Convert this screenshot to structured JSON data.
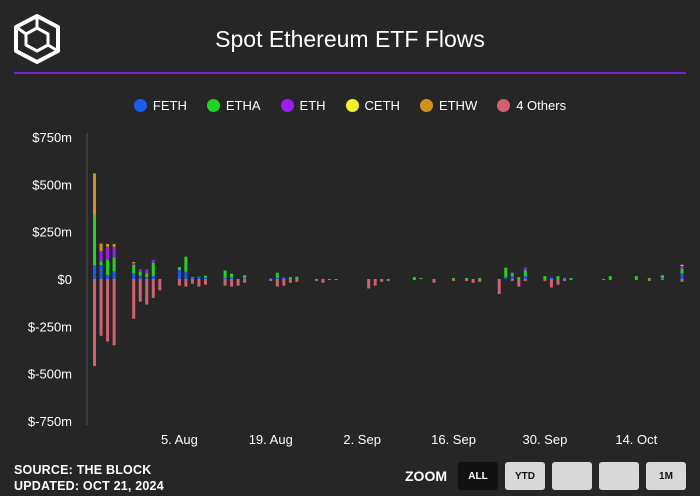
{
  "title": "Spot Ethereum ETF Flows",
  "footer": {
    "source": "SOURCE: THE BLOCK",
    "updated": "UPDATED: OCT 21, 2024"
  },
  "zoom": {
    "label": "ZOOM",
    "buttons": [
      "ALL",
      "YTD",
      "",
      "",
      "1M"
    ],
    "active": "ALL"
  },
  "colors": {
    "background": "#262626",
    "accent": "#7b1fd6"
  },
  "chart_data": {
    "type": "bar",
    "stacked": true,
    "title": "Spot Ethereum ETF Flows",
    "ylim": [
      -750,
      750
    ],
    "yticks": [
      -750,
      -500,
      -250,
      0,
      250,
      500,
      750
    ],
    "ytick_labels": [
      "$-750m",
      "$-500m",
      "$-250m",
      "$0",
      "$250m",
      "$500m",
      "$750m"
    ],
    "xlim": [
      "2024-07-22",
      "2024-10-21"
    ],
    "xtick_labels": [
      {
        "date": "2024-08-05",
        "label": "5. Aug"
      },
      {
        "date": "2024-08-19",
        "label": "19. Aug"
      },
      {
        "date": "2024-09-02",
        "label": "2. Sep"
      },
      {
        "date": "2024-09-16",
        "label": "16. Sep"
      },
      {
        "date": "2024-09-30",
        "label": "30. Sep"
      },
      {
        "date": "2024-10-14",
        "label": "14. Oct"
      }
    ],
    "grid": false,
    "legend_position": "top-center",
    "series": [
      {
        "name": "FETH",
        "color": "#1a5cf0"
      },
      {
        "name": "ETHA",
        "color": "#22d31f"
      },
      {
        "name": "ETH",
        "color": "#9b1ff2"
      },
      {
        "name": "CETH",
        "color": "#f2f22a"
      },
      {
        "name": "ETHW",
        "color": "#d1921c"
      },
      {
        "name": "4 Others",
        "color": "#cf6170"
      }
    ],
    "days": [
      {
        "date": "2024-07-23",
        "values": [
          72,
          266,
          0,
          0,
          220,
          -460
        ]
      },
      {
        "date": "2024-07-24",
        "values": [
          74,
          18,
          55,
          0,
          40,
          -300
        ]
      },
      {
        "date": "2024-07-25",
        "values": [
          20,
          80,
          70,
          0,
          15,
          -330
        ]
      },
      {
        "date": "2024-07-26",
        "values": [
          40,
          75,
          55,
          0,
          15,
          -350
        ]
      },
      {
        "date": "2024-07-29",
        "values": [
          30,
          45,
          10,
          0,
          5,
          -210
        ]
      },
      {
        "date": "2024-07-30",
        "values": [
          18,
          20,
          14,
          0,
          0,
          -120
        ]
      },
      {
        "date": "2024-07-31",
        "values": [
          10,
          20,
          20,
          0,
          0,
          -135
        ]
      },
      {
        "date": "2024-08-01",
        "values": [
          16,
          70,
          15,
          0,
          0,
          -100
        ]
      },
      {
        "date": "2024-08-02",
        "values": [
          0,
          0,
          0,
          0,
          0,
          -60
        ]
      },
      {
        "date": "2024-08-05",
        "values": [
          48,
          15,
          0,
          0,
          0,
          -35
        ]
      },
      {
        "date": "2024-08-06",
        "values": [
          38,
          80,
          0,
          0,
          0,
          -40
        ]
      },
      {
        "date": "2024-08-07",
        "values": [
          5,
          5,
          0,
          0,
          0,
          -25
        ]
      },
      {
        "date": "2024-08-08",
        "values": [
          14,
          0,
          0,
          0,
          0,
          -40
        ]
      },
      {
        "date": "2024-08-09",
        "values": [
          8,
          10,
          0,
          0,
          0,
          -30
        ]
      },
      {
        "date": "2024-08-12",
        "values": [
          5,
          40,
          0,
          0,
          0,
          -35
        ]
      },
      {
        "date": "2024-08-13",
        "values": [
          8,
          20,
          0,
          0,
          0,
          -40
        ]
      },
      {
        "date": "2024-08-14",
        "values": [
          0,
          0,
          0,
          0,
          0,
          -35
        ]
      },
      {
        "date": "2024-08-15",
        "values": [
          5,
          15,
          0,
          0,
          0,
          -20
        ]
      },
      {
        "date": "2024-08-19",
        "values": [
          4,
          0,
          0,
          0,
          0,
          -10
        ]
      },
      {
        "date": "2024-08-20",
        "values": [
          6,
          27,
          0,
          0,
          0,
          -40
        ]
      },
      {
        "date": "2024-08-21",
        "values": [
          5,
          0,
          5,
          0,
          0,
          -35
        ]
      },
      {
        "date": "2024-08-22",
        "values": [
          0,
          10,
          0,
          0,
          0,
          -20
        ]
      },
      {
        "date": "2024-08-23",
        "values": [
          0,
          12,
          0,
          0,
          0,
          -15
        ]
      },
      {
        "date": "2024-08-26",
        "values": [
          0,
          0,
          0,
          0,
          0,
          -10
        ]
      },
      {
        "date": "2024-08-27",
        "values": [
          0,
          0,
          0,
          0,
          0,
          -20
        ]
      },
      {
        "date": "2024-08-28",
        "values": [
          0,
          0,
          0,
          0,
          0,
          -5
        ]
      },
      {
        "date": "2024-08-29",
        "values": [
          0,
          0,
          0,
          0,
          0,
          -5
        ]
      },
      {
        "date": "2024-09-03",
        "values": [
          0,
          0,
          0,
          0,
          0,
          -50
        ]
      },
      {
        "date": "2024-09-04",
        "values": [
          0,
          0,
          0,
          0,
          0,
          -35
        ]
      },
      {
        "date": "2024-09-05",
        "values": [
          0,
          0,
          0,
          0,
          0,
          -15
        ]
      },
      {
        "date": "2024-09-06",
        "values": [
          0,
          0,
          0,
          0,
          0,
          -10
        ]
      },
      {
        "date": "2024-09-10",
        "values": [
          0,
          10,
          0,
          0,
          0,
          -5
        ]
      },
      {
        "date": "2024-09-11",
        "values": [
          0,
          5,
          0,
          0,
          0,
          0
        ]
      },
      {
        "date": "2024-09-13",
        "values": [
          0,
          0,
          0,
          0,
          0,
          -20
        ]
      },
      {
        "date": "2024-09-16",
        "values": [
          0,
          5,
          0,
          0,
          0,
          -10
        ]
      },
      {
        "date": "2024-09-18",
        "values": [
          0,
          5,
          0,
          0,
          0,
          -10
        ]
      },
      {
        "date": "2024-09-19",
        "values": [
          0,
          0,
          0,
          0,
          0,
          -20
        ]
      },
      {
        "date": "2024-09-20",
        "values": [
          0,
          5,
          0,
          0,
          0,
          -15
        ]
      },
      {
        "date": "2024-09-23",
        "values": [
          0,
          0,
          0,
          0,
          0,
          -80
        ]
      },
      {
        "date": "2024-09-24",
        "values": [
          10,
          50,
          0,
          0,
          0,
          0
        ]
      },
      {
        "date": "2024-09-25",
        "values": [
          15,
          15,
          5,
          0,
          0,
          -10
        ]
      },
      {
        "date": "2024-09-26",
        "values": [
          0,
          10,
          0,
          0,
          0,
          -40
        ]
      },
      {
        "date": "2024-09-27",
        "values": [
          15,
          30,
          15,
          0,
          0,
          -10
        ]
      },
      {
        "date": "2024-09-30",
        "values": [
          0,
          15,
          0,
          0,
          0,
          -10
        ]
      },
      {
        "date": "2024-10-01",
        "values": [
          8,
          0,
          0,
          0,
          0,
          -45
        ]
      },
      {
        "date": "2024-10-02",
        "values": [
          0,
          15,
          0,
          0,
          0,
          -30
        ]
      },
      {
        "date": "2024-10-03",
        "values": [
          8,
          0,
          0,
          0,
          0,
          -10
        ]
      },
      {
        "date": "2024-10-04",
        "values": [
          0,
          5,
          0,
          0,
          0,
          -5
        ]
      },
      {
        "date": "2024-10-09",
        "values": [
          0,
          0,
          0,
          0,
          0,
          -5
        ]
      },
      {
        "date": "2024-10-10",
        "values": [
          0,
          15,
          0,
          0,
          0,
          -5
        ]
      },
      {
        "date": "2024-10-14",
        "values": [
          0,
          15,
          0,
          0,
          0,
          -5
        ]
      },
      {
        "date": "2024-10-16",
        "values": [
          0,
          5,
          0,
          0,
          0,
          -10
        ]
      },
      {
        "date": "2024-10-18",
        "values": [
          5,
          15,
          0,
          0,
          0,
          -5
        ]
      },
      {
        "date": "2024-10-21",
        "values": [
          30,
          25,
          15,
          5,
          0,
          -15
        ]
      }
    ]
  }
}
